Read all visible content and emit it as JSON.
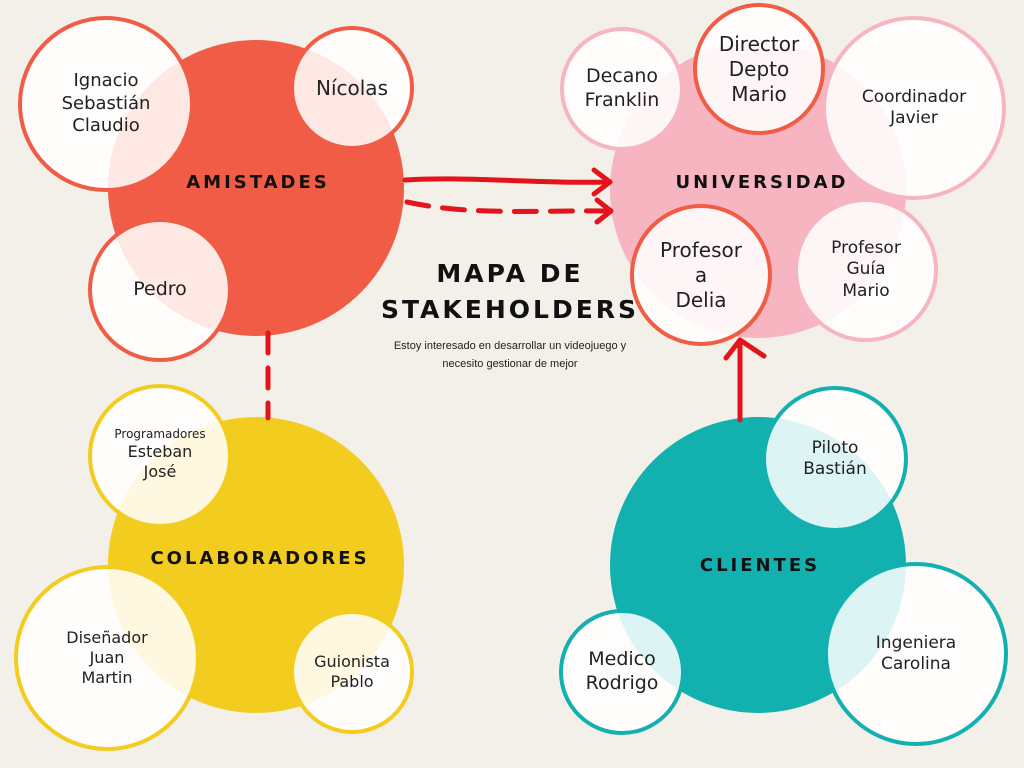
{
  "title": "MAPA DE\nSTAKEHOLDERS",
  "subtitle": "Estoy interesado en desarrollar un videojuego y necesito gestionar de mejor",
  "colors": {
    "background": "#f3efe9",
    "amistades": "#f05c45",
    "universidad": "#f7b4c1",
    "colaboradores": "#f2cd1f",
    "clientes": "#13b0b0",
    "arrow": "#e3141b"
  },
  "groups": {
    "amistades": {
      "label": "AMISTADES",
      "members": [
        "Ignacio\nSebastián\nClaudio",
        "Nícolas",
        "Pedro"
      ]
    },
    "universidad": {
      "label": "UNIVERSIDAD",
      "members": [
        "Decano\nFranklin",
        "Director\nDepto\nMario",
        "Coordinador\nJavier",
        "Profesor\na\nDelia",
        "Profesor\nGuía\nMario"
      ]
    },
    "colaboradores": {
      "label": "COLABORADORES",
      "programadores_heading": "Programadores",
      "members": [
        "Esteban\nJosé",
        "Diseñador\nJuan\nMartin",
        "Guionista\nPablo"
      ]
    },
    "clientes": {
      "label": "CLIENTES",
      "members": [
        "Piloto\nBastián",
        "Medico\nRodrigo",
        "Ingeniera\nCarolina"
      ]
    }
  }
}
